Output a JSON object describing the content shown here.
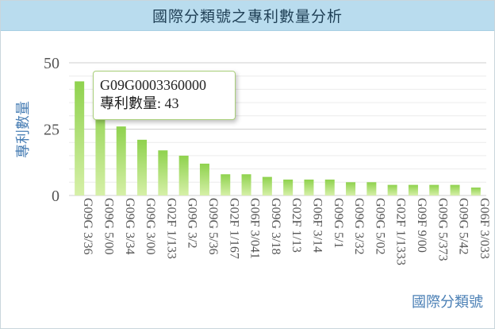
{
  "header": {
    "title": "國際分類號之專利數量分析"
  },
  "tooltip": {
    "category": "G09G0003360000",
    "metric_label": "專利數量:",
    "value": "43"
  },
  "colors": {
    "title_bg": "#b9dcee",
    "bar_top": "#8fd24e",
    "bar_bottom": "#d6f0a8",
    "axis_label": "#4a7fb5"
  },
  "chart_data": {
    "type": "bar",
    "title": "國際分類號之專利數量分析",
    "xlabel": "國際分類號",
    "ylabel": "專利數量",
    "ylim": [
      0,
      50
    ],
    "yticks": [
      0,
      25,
      50
    ],
    "grid": true,
    "categories": [
      "G09G 3/36",
      "G09G 5/00",
      "G09G 3/34",
      "G09G 3/00",
      "G02F 1/133",
      "G09G 3/2",
      "G09G 5/36",
      "G02F 1/167",
      "G06F 3/041",
      "G09G 3/18",
      "G02F 1/13",
      "G06F 3/14",
      "G09G 5/1",
      "G09G 3/32",
      "G09G 5/02",
      "G02F 1/1333",
      "G09F 9/00",
      "G09G 5/373",
      "G09G 5/42",
      "G06F 3/033"
    ],
    "values": [
      43,
      36,
      26,
      21,
      17,
      15,
      12,
      8,
      8,
      7,
      6,
      6,
      6,
      5,
      5,
      4,
      4,
      4,
      4,
      3
    ]
  }
}
